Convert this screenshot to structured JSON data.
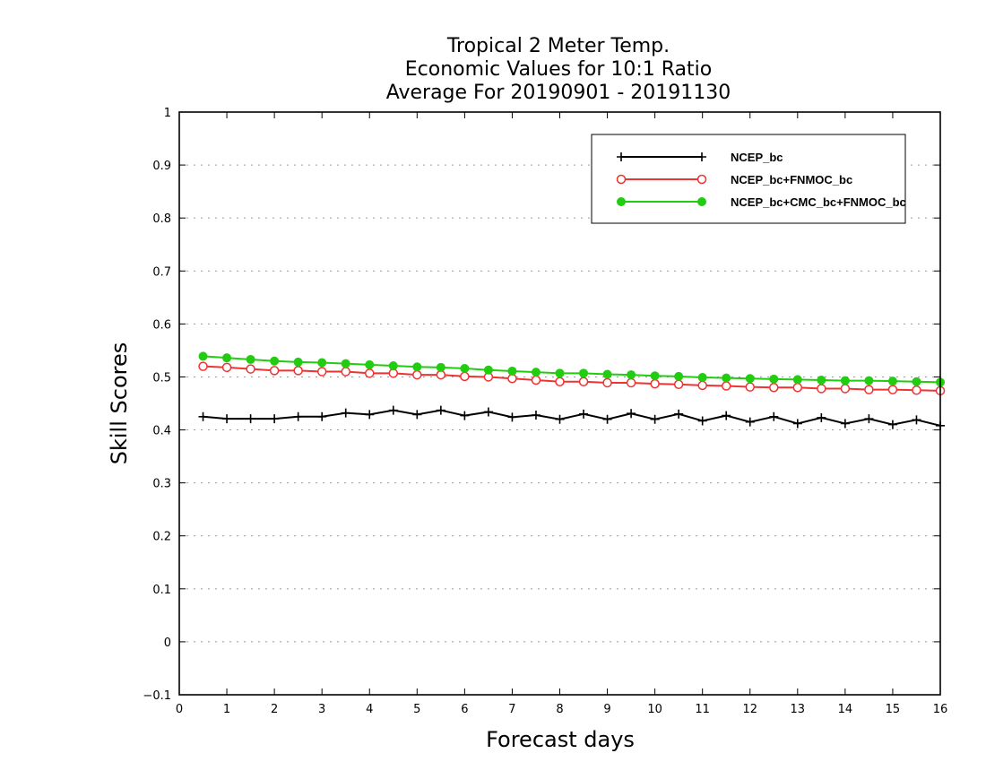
{
  "chart_data": {
    "type": "line",
    "title": [
      "Tropical 2 Meter Temp.",
      "Economic Values for 10:1 Ratio",
      "Average For 20190901 - 20191130"
    ],
    "xlabel": "Forecast days",
    "ylabel": "Skill Scores",
    "xlim": [
      0,
      16
    ],
    "ylim": [
      -0.1,
      1
    ],
    "xticks": [
      "0",
      "1",
      "2",
      "3",
      "4",
      "5",
      "6",
      "7",
      "8",
      "9",
      "10",
      "11",
      "12",
      "13",
      "14",
      "15",
      "16"
    ],
    "yticks": [
      "−0.1",
      "0",
      "0.1",
      "0.2",
      "0.3",
      "0.4",
      "0.5",
      "0.6",
      "0.7",
      "0.8",
      "0.9",
      "1"
    ],
    "grid": "horizontal dotted",
    "legend_position": "top-right",
    "x": [
      0.5,
      1,
      1.5,
      2,
      2.5,
      3,
      3.5,
      4,
      4.5,
      5,
      5.5,
      6,
      6.5,
      7,
      7.5,
      8,
      8.5,
      9,
      9.5,
      10,
      10.5,
      11,
      11.5,
      12,
      12.5,
      13,
      13.5,
      14,
      14.5,
      15,
      15.5,
      16
    ],
    "series": [
      {
        "name": "NCEP_bc",
        "color": "#000000",
        "marker": "plus",
        "values": [
          0.425,
          0.421,
          0.421,
          0.421,
          0.425,
          0.425,
          0.432,
          0.429,
          0.437,
          0.429,
          0.437,
          0.427,
          0.434,
          0.424,
          0.428,
          0.42,
          0.43,
          0.42,
          0.431,
          0.42,
          0.43,
          0.417,
          0.427,
          0.415,
          0.425,
          0.412,
          0.423,
          0.412,
          0.421,
          0.41,
          0.419,
          0.408
        ]
      },
      {
        "name": "NCEP_bc+FNMOC_bc",
        "color": "#ee3333",
        "marker": "open-circle",
        "values": [
          0.52,
          0.518,
          0.515,
          0.512,
          0.512,
          0.51,
          0.51,
          0.507,
          0.507,
          0.504,
          0.504,
          0.501,
          0.5,
          0.497,
          0.494,
          0.491,
          0.491,
          0.489,
          0.489,
          0.487,
          0.486,
          0.484,
          0.483,
          0.481,
          0.48,
          0.48,
          0.478,
          0.478,
          0.476,
          0.476,
          0.475,
          0.474
        ]
      },
      {
        "name": "NCEP_bc+CMC_bc+FNMOC_bc",
        "color": "#22cc11",
        "marker": "filled-circle",
        "values": [
          0.539,
          0.536,
          0.533,
          0.53,
          0.528,
          0.527,
          0.525,
          0.523,
          0.521,
          0.519,
          0.518,
          0.516,
          0.513,
          0.511,
          0.509,
          0.507,
          0.507,
          0.505,
          0.504,
          0.502,
          0.501,
          0.499,
          0.498,
          0.497,
          0.496,
          0.495,
          0.494,
          0.493,
          0.493,
          0.492,
          0.491,
          0.49
        ]
      }
    ]
  }
}
